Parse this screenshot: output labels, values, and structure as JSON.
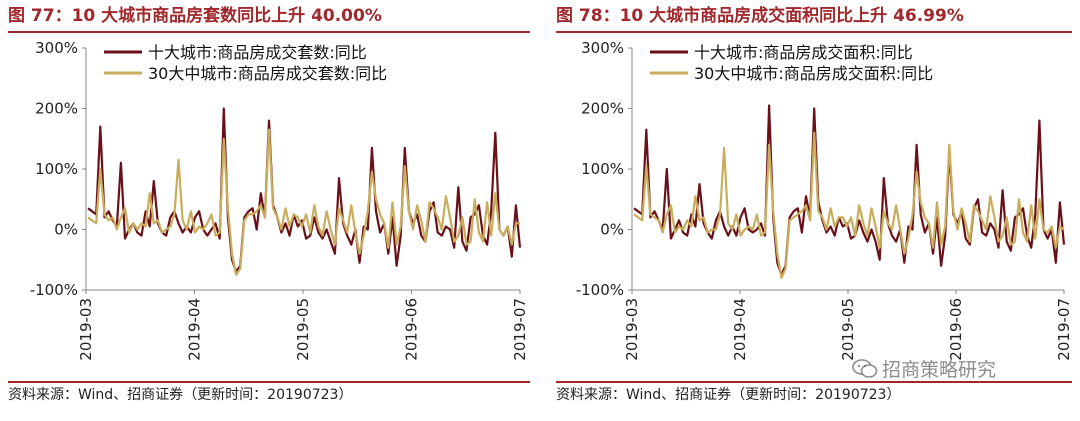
{
  "watermark": "招商策略研究",
  "panels": [
    {
      "title": "图 77：10 大城市商品房套数同比上升 40.00%",
      "source": "资料来源：Wind、招商证券（更新时间：20190723）"
    },
    {
      "title": "图 78：10 大城市商品房成交面积同比上升 46.99%",
      "source": "资料来源：Wind、招商证券（更新时间：20190723）"
    }
  ],
  "colors": {
    "accent": "#a0282d",
    "series_dark": "#6b1019",
    "series_light": "#c9ad5c"
  },
  "chart_data": [
    {
      "type": "line",
      "title": "10 大城市商品房套数同比上升 40.00%",
      "y_ticks": [
        "300%",
        "200%",
        "100%",
        "0%",
        "-100%"
      ],
      "x_ticks": [
        "2019-03",
        "2019-04",
        "2019-05",
        "2019-06",
        "2019-07"
      ],
      "ylim": [
        -100,
        300
      ],
      "grid": false,
      "legend": "top-left",
      "series": [
        {
          "name": "十大城市:商品房成交套数:同比",
          "values": [
            35,
            30,
            25,
            170,
            20,
            30,
            15,
            5,
            110,
            -15,
            0,
            10,
            -5,
            -10,
            30,
            5,
            80,
            10,
            -5,
            -10,
            20,
            30,
            10,
            -5,
            5,
            -5,
            20,
            30,
            0,
            -10,
            0,
            10,
            -15,
            200,
            20,
            -50,
            -70,
            -60,
            20,
            30,
            35,
            0,
            60,
            20,
            180,
            40,
            20,
            -5,
            10,
            -10,
            25,
            5,
            15,
            -15,
            -10,
            20,
            -5,
            -15,
            0,
            -20,
            -40,
            85,
            10,
            -10,
            -25,
            0,
            -55,
            5,
            0,
            135,
            30,
            -5,
            10,
            -40,
            20,
            -60,
            -10,
            135,
            30,
            10,
            25,
            -10,
            -20,
            30,
            45,
            -5,
            -10,
            5,
            0,
            -30,
            70,
            -20,
            -35,
            20,
            25,
            40,
            -10,
            -25,
            30,
            160,
            0,
            -10,
            5,
            -45,
            40,
            -30
          ]
        },
        {
          "name": "30大中城市:商品房成交套数:同比",
          "values": [
            20,
            15,
            10,
            100,
            25,
            15,
            20,
            0,
            20,
            35,
            -5,
            10,
            0,
            10,
            5,
            60,
            10,
            15,
            -5,
            0,
            5,
            25,
            115,
            15,
            0,
            30,
            -5,
            5,
            0,
            10,
            25,
            -10,
            -5,
            150,
            35,
            -40,
            -75,
            -65,
            15,
            25,
            25,
            30,
            40,
            20,
            165,
            35,
            20,
            0,
            35,
            5,
            25,
            20,
            5,
            25,
            -5,
            40,
            5,
            -10,
            30,
            0,
            -25,
            35,
            15,
            -5,
            40,
            -5,
            -40,
            -10,
            30,
            95,
            50,
            25,
            10,
            -30,
            45,
            -25,
            5,
            105,
            30,
            0,
            40,
            15,
            -20,
            45,
            35,
            20,
            0,
            55,
            20,
            -20,
            -10,
            20,
            -25,
            -20,
            50,
            -5,
            -20,
            45,
            -10,
            60,
            0,
            -10,
            5,
            -25,
            10,
            10
          ]
        }
      ]
    },
    {
      "type": "line",
      "title": "10 大城市商品房成交面积同比上升 46.99%",
      "y_ticks": [
        "300%",
        "200%",
        "100%",
        "0%",
        "-100%"
      ],
      "x_ticks": [
        "2019-03",
        "2019-04",
        "2019-05",
        "2019-06",
        "2019-07"
      ],
      "ylim": [
        -100,
        300
      ],
      "grid": false,
      "legend": "top-left",
      "series": [
        {
          "name": "十大城市:商品房成交面积:同比",
          "values": [
            35,
            30,
            25,
            165,
            20,
            30,
            15,
            0,
            100,
            -15,
            0,
            15,
            -5,
            -10,
            25,
            5,
            75,
            10,
            -5,
            -15,
            15,
            30,
            5,
            -10,
            5,
            -10,
            20,
            35,
            0,
            -5,
            0,
            10,
            -10,
            205,
            20,
            -55,
            -75,
            -60,
            20,
            30,
            35,
            -5,
            55,
            20,
            200,
            45,
            15,
            -5,
            5,
            -10,
            20,
            5,
            10,
            -15,
            -10,
            15,
            -5,
            -20,
            0,
            -20,
            -50,
            85,
            10,
            -10,
            -20,
            0,
            -55,
            5,
            0,
            140,
            25,
            -5,
            10,
            -40,
            20,
            -60,
            -10,
            130,
            25,
            10,
            30,
            -15,
            -25,
            35,
            50,
            -5,
            -10,
            10,
            0,
            -30,
            65,
            -20,
            -35,
            20,
            25,
            35,
            -10,
            -30,
            25,
            180,
            0,
            -15,
            0,
            -55,
            45,
            -25
          ]
        },
        {
          "name": "30大中城市:商品房成交面积:同比",
          "values": [
            25,
            20,
            15,
            105,
            25,
            20,
            15,
            -5,
            25,
            40,
            -5,
            5,
            0,
            15,
            5,
            55,
            15,
            20,
            -5,
            0,
            0,
            25,
            135,
            10,
            0,
            25,
            -10,
            0,
            5,
            0,
            25,
            -10,
            -5,
            140,
            30,
            -40,
            -80,
            -65,
            15,
            20,
            25,
            30,
            40,
            15,
            160,
            30,
            20,
            0,
            35,
            5,
            20,
            20,
            5,
            20,
            -10,
            40,
            10,
            -10,
            35,
            5,
            -30,
            30,
            10,
            0,
            40,
            0,
            -40,
            -15,
            25,
            95,
            45,
            20,
            10,
            -30,
            45,
            -25,
            5,
            140,
            30,
            0,
            35,
            10,
            -20,
            40,
            30,
            15,
            0,
            55,
            20,
            -20,
            -10,
            20,
            -25,
            -20,
            50,
            -5,
            -20,
            40,
            -15,
            50,
            0,
            -5,
            5,
            -30,
            5,
            0
          ]
        }
      ]
    }
  ]
}
